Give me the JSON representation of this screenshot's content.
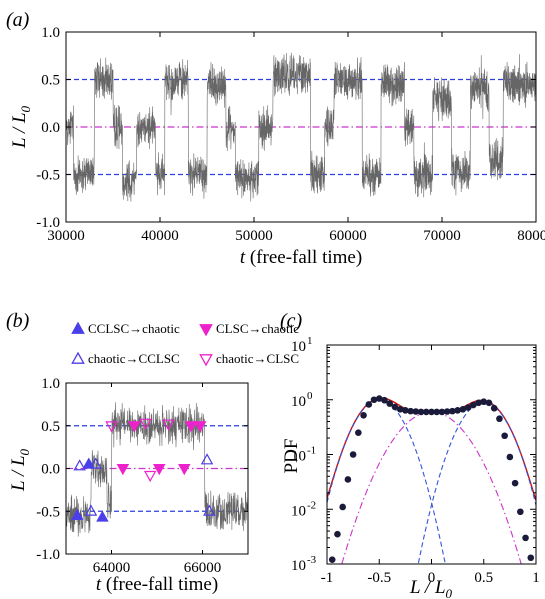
{
  "chart_data": [
    {
      "panel_label": "(a)",
      "type": "line",
      "xlabel_var": "t",
      "xlabel_rest": " (free-fall time)",
      "ylabel": "L / L",
      "ylabel_sub": "0",
      "xlim": [
        30000,
        80000
      ],
      "ylim": [
        -1.0,
        1.0
      ],
      "xticks": [
        "30000",
        "40000",
        "50000",
        "60000",
        "70000",
        "80000"
      ],
      "xtick_values": [
        30000,
        40000,
        50000,
        60000,
        70000,
        80000
      ],
      "yticks": [
        "-1.0",
        "-0.5",
        "0.0",
        "0.5",
        "1.0"
      ],
      "ytick_values": [
        -1.0,
        -0.5,
        0.0,
        0.5,
        1.0
      ],
      "reference_lines": [
        {
          "y": 0.5,
          "color": "#2b3fe0",
          "style": "dashed"
        },
        {
          "y": 0.0,
          "color": "#cc33cc",
          "style": "dashdot"
        },
        {
          "y": -0.5,
          "color": "#2b3fe0",
          "style": "dashed"
        }
      ],
      "series_color": "#666666",
      "signal_segments": [
        {
          "t0": 30000,
          "t1": 30800,
          "level": 0.0
        },
        {
          "t0": 30800,
          "t1": 33000,
          "level": -0.5
        },
        {
          "t0": 33000,
          "t1": 35000,
          "level": 0.5
        },
        {
          "t0": 35000,
          "t1": 36000,
          "level": 0.0
        },
        {
          "t0": 36000,
          "t1": 37500,
          "level": -0.55
        },
        {
          "t0": 37500,
          "t1": 39500,
          "level": 0.0
        },
        {
          "t0": 39500,
          "t1": 40500,
          "level": -0.5
        },
        {
          "t0": 40500,
          "t1": 43000,
          "level": 0.5
        },
        {
          "t0": 43000,
          "t1": 45000,
          "level": -0.5
        },
        {
          "t0": 45000,
          "t1": 47000,
          "level": 0.45
        },
        {
          "t0": 47000,
          "t1": 48000,
          "level": 0.0
        },
        {
          "t0": 48000,
          "t1": 50500,
          "level": -0.55
        },
        {
          "t0": 50500,
          "t1": 52000,
          "level": 0.0
        },
        {
          "t0": 52000,
          "t1": 56000,
          "level": 0.55
        },
        {
          "t0": 56000,
          "t1": 57500,
          "level": -0.5
        },
        {
          "t0": 57500,
          "t1": 58500,
          "level": 0.0
        },
        {
          "t0": 58500,
          "t1": 61500,
          "level": 0.5
        },
        {
          "t0": 61500,
          "t1": 63500,
          "level": -0.5
        },
        {
          "t0": 63500,
          "t1": 66000,
          "level": 0.45
        },
        {
          "t0": 66000,
          "t1": 67000,
          "level": 0.0
        },
        {
          "t0": 67000,
          "t1": 69000,
          "level": -0.5
        },
        {
          "t0": 69000,
          "t1": 71000,
          "level": 0.3
        },
        {
          "t0": 71000,
          "t1": 73000,
          "level": -0.45
        },
        {
          "t0": 73000,
          "t1": 75000,
          "level": 0.4
        },
        {
          "t0": 75000,
          "t1": 76500,
          "level": -0.35
        },
        {
          "t0": 76500,
          "t1": 80000,
          "level": 0.45
        }
      ]
    },
    {
      "panel_label": "(b)",
      "type": "line",
      "xlabel_var": "t",
      "xlabel_rest": " (free-fall time)",
      "ylabel": "L / L",
      "ylabel_sub": "0",
      "xlim": [
        63000,
        67000
      ],
      "ylim": [
        -1.0,
        1.0
      ],
      "xticks": [
        "64000",
        "66000"
      ],
      "xtick_values": [
        64000,
        66000
      ],
      "yticks": [
        "-1.0",
        "-0.5",
        "0.0",
        "0.5",
        "1.0"
      ],
      "ytick_values": [
        -1.0,
        -0.5,
        0.0,
        0.5,
        1.0
      ],
      "reference_lines": [
        {
          "y": 0.5,
          "color": "#2b3fe0",
          "style": "dashed"
        },
        {
          "y": 0.0,
          "color": "#cc33cc",
          "style": "dashdot"
        },
        {
          "y": -0.5,
          "color": "#2b3fe0",
          "style": "dashed"
        }
      ],
      "series_color": "#666666",
      "signal_segments": [
        {
          "t0": 63000,
          "t1": 63550,
          "level": -0.55
        },
        {
          "t0": 63550,
          "t1": 63900,
          "level": 0.0
        },
        {
          "t0": 63900,
          "t1": 64000,
          "level": -0.4
        },
        {
          "t0": 64000,
          "t1": 66050,
          "level": 0.5
        },
        {
          "t0": 66050,
          "t1": 67000,
          "level": -0.5
        }
      ],
      "legend": [
        {
          "label": "CCLSC→chaotic",
          "marker": "triangle-up",
          "filled": true,
          "color": "#4a3fe8"
        },
        {
          "label": "CLSC→chaotic",
          "marker": "triangle-down",
          "filled": true,
          "color": "#ee22cc"
        },
        {
          "label": "chaotic→CCLSC",
          "marker": "triangle-up",
          "filled": false,
          "color": "#4a3fe8"
        },
        {
          "label": "chaotic→CLSC",
          "marker": "triangle-down",
          "filled": false,
          "color": "#ee22cc"
        }
      ],
      "transitions": [
        {
          "t": 63250,
          "y": -0.55,
          "kind": 0
        },
        {
          "t": 63300,
          "y": 0.03,
          "kind": 2
        },
        {
          "t": 63500,
          "y": 0.05,
          "kind": 0
        },
        {
          "t": 63650,
          "y": 0.05,
          "kind": 2
        },
        {
          "t": 63550,
          "y": -0.5,
          "kind": 2
        },
        {
          "t": 63800,
          "y": -0.57,
          "kind": 0
        },
        {
          "t": 64000,
          "y": 0.5,
          "kind": 3
        },
        {
          "t": 64250,
          "y": 0.0,
          "kind": 1
        },
        {
          "t": 64500,
          "y": 0.5,
          "kind": 1
        },
        {
          "t": 64750,
          "y": 0.53,
          "kind": 3
        },
        {
          "t": 64850,
          "y": -0.08,
          "kind": 3
        },
        {
          "t": 65050,
          "y": 0.0,
          "kind": 1
        },
        {
          "t": 65250,
          "y": 0.52,
          "kind": 3
        },
        {
          "t": 65600,
          "y": 0.0,
          "kind": 1
        },
        {
          "t": 65750,
          "y": 0.5,
          "kind": 1
        },
        {
          "t": 65950,
          "y": 0.5,
          "kind": 1
        },
        {
          "t": 66100,
          "y": 0.1,
          "kind": 2
        },
        {
          "t": 66150,
          "y": -0.5,
          "kind": 2
        }
      ]
    },
    {
      "panel_label": "(c)",
      "type": "scatter",
      "xlabel": "L / L",
      "xlabel_sub": "0",
      "ylabel": "PDF",
      "xlim": [
        -1,
        1
      ],
      "ylim_log10": [
        -3,
        1
      ],
      "yscale": "log",
      "xticks": [
        "-1",
        "-0.5",
        "0",
        "0.5",
        "1"
      ],
      "xtick_values": [
        -1,
        -0.5,
        0,
        0.5,
        1
      ],
      "yticks": [
        {
          "base": "10",
          "exp": "-3",
          "value": 0.001
        },
        {
          "base": "10",
          "exp": "-2",
          "value": 0.01
        },
        {
          "base": "10",
          "exp": "-1",
          "value": 0.1
        },
        {
          "base": "10",
          "exp": "0",
          "value": 1
        },
        {
          "base": "10",
          "exp": "1",
          "value": 10
        }
      ],
      "data_points": {
        "x": [
          -0.95,
          -0.9,
          -0.85,
          -0.8,
          -0.75,
          -0.7,
          -0.65,
          -0.6,
          -0.55,
          -0.5,
          -0.45,
          -0.4,
          -0.35,
          -0.3,
          -0.25,
          -0.2,
          -0.15,
          -0.1,
          -0.05,
          0,
          0.05,
          0.1,
          0.15,
          0.2,
          0.25,
          0.3,
          0.35,
          0.4,
          0.45,
          0.5,
          0.55,
          0.6,
          0.65,
          0.7,
          0.75,
          0.8,
          0.85,
          0.9,
          0.95
        ],
        "y": [
          0.0012,
          0.0035,
          0.011,
          0.035,
          0.1,
          0.25,
          0.52,
          0.82,
          1.0,
          1.05,
          0.98,
          0.85,
          0.74,
          0.67,
          0.64,
          0.62,
          0.61,
          0.6,
          0.6,
          0.6,
          0.6,
          0.6,
          0.61,
          0.62,
          0.64,
          0.67,
          0.72,
          0.8,
          0.88,
          0.92,
          0.88,
          0.7,
          0.45,
          0.22,
          0.09,
          0.03,
          0.009,
          0.003,
          0.0013
        ],
        "color": "#1a1a3a"
      },
      "curves": [
        {
          "kind": "total-fit",
          "color": "#cc1111",
          "style": "solid"
        },
        {
          "kind": "gaussian",
          "mean": -0.5,
          "sd": 0.17,
          "amp": 1.0,
          "color": "#3355dd",
          "style": "dashed"
        },
        {
          "kind": "gaussian",
          "mean": 0.5,
          "sd": 0.17,
          "amp": 0.9,
          "color": "#3355dd",
          "style": "dashed"
        },
        {
          "kind": "gaussian",
          "mean": 0.0,
          "sd": 0.24,
          "amp": 0.6,
          "color": "#cc33cc",
          "style": "dashdot"
        }
      ]
    }
  ]
}
